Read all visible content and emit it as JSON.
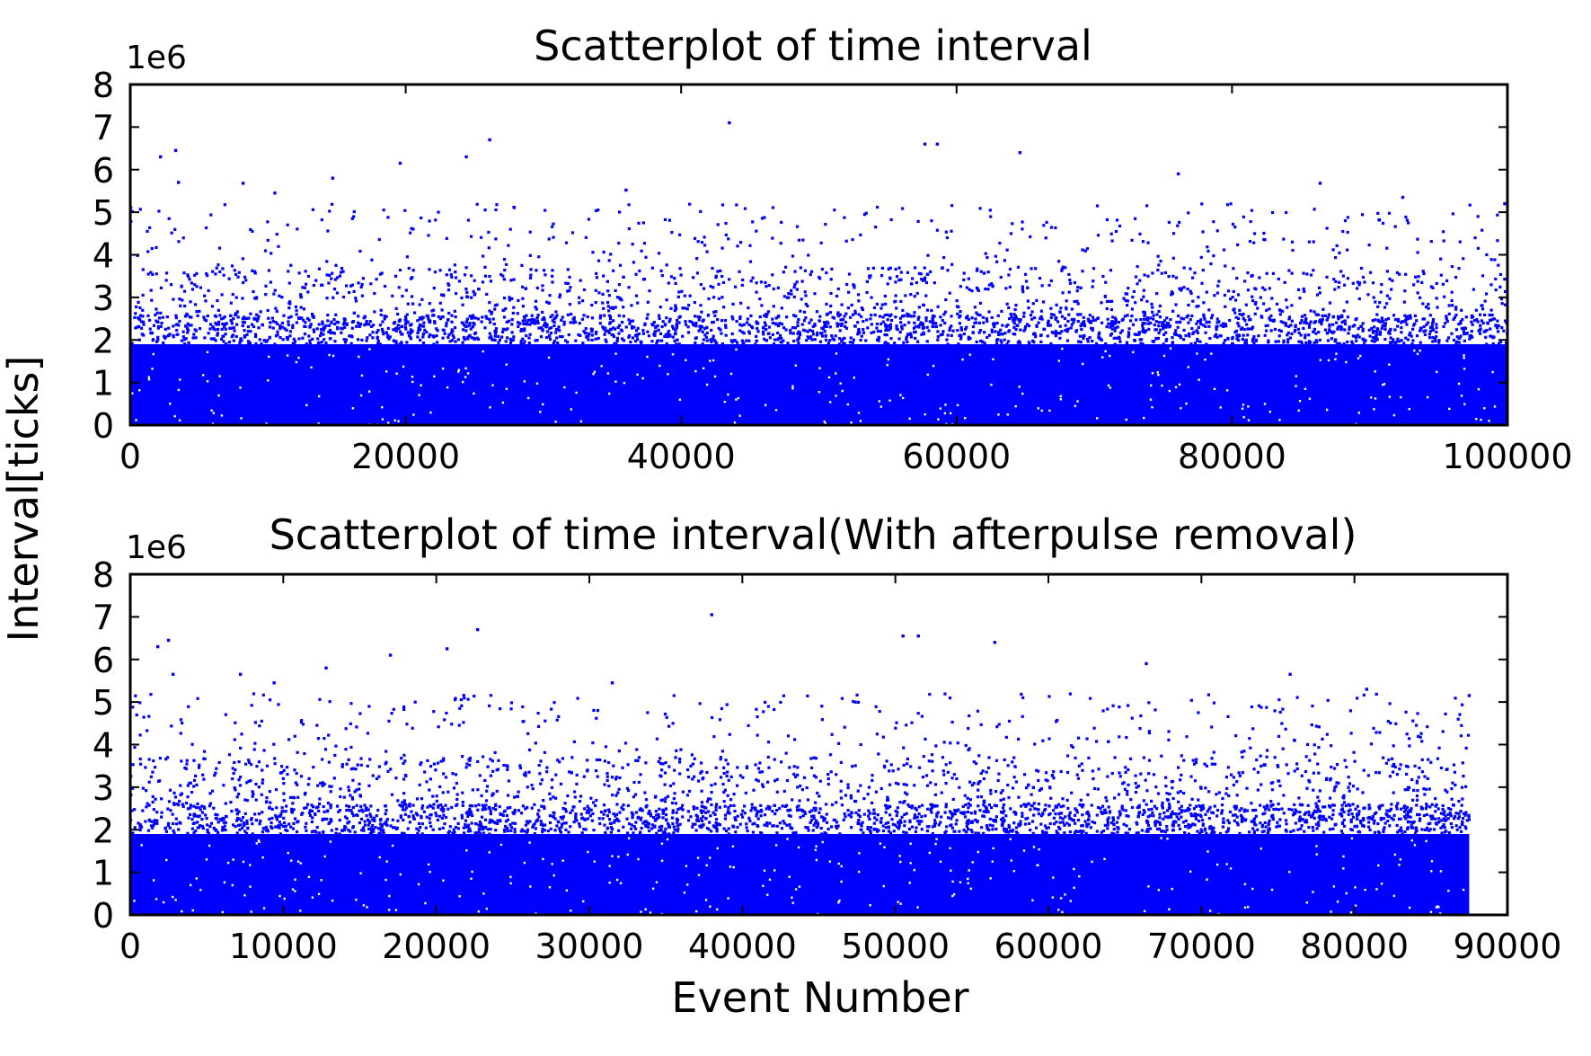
{
  "figure": {
    "ylabel": "Interval[ticks]",
    "xlabel": "Event Number"
  },
  "chart_data": [
    {
      "type": "scatter",
      "title": "Scatterplot of time interval",
      "xlabel": "",
      "ylabel": "Interval[ticks]",
      "xlim": [
        0,
        100000
      ],
      "ylim": [
        0,
        8000000
      ],
      "y_offset_label": "1e6",
      "x_ticks": [
        "0",
        "20000",
        "40000",
        "60000",
        "80000",
        "100000"
      ],
      "y_ticks": [
        "0",
        "1",
        "2",
        "3",
        "4",
        "5",
        "6",
        "7",
        "8"
      ],
      "marker_color": "#0000ff",
      "grid": false,
      "n_points": 100000,
      "dense_band_max": 1900000,
      "distribution": "dense band 0 to ~1.9e6; sparse scatter up to ~7.1e6",
      "outliers": {
        "x": [
          2200,
          3300,
          3500,
          8200,
          10500,
          14700,
          19600,
          24400,
          26100,
          36000,
          43500,
          57700,
          58600,
          64600,
          76100,
          86400,
          92400,
          99800
        ],
        "y": [
          6300000,
          6450000,
          5700000,
          5680000,
          5450000,
          5800000,
          6150000,
          6300000,
          6700000,
          5520000,
          7100000,
          6600000,
          6600000,
          6400000,
          5900000,
          5680000,
          5350000,
          5200000
        ]
      }
    },
    {
      "type": "scatter",
      "title": "Scatterplot of time interval(With afterpulse removal)",
      "xlabel": "Event Number",
      "ylabel": "Interval[ticks]",
      "xlim": [
        0,
        90000
      ],
      "ylim": [
        0,
        8000000
      ],
      "y_offset_label": "1e6",
      "x_ticks": [
        "0",
        "10000",
        "20000",
        "30000",
        "40000",
        "50000",
        "60000",
        "70000",
        "80000",
        "90000"
      ],
      "y_ticks": [
        "0",
        "1",
        "2",
        "3",
        "4",
        "5",
        "6",
        "7",
        "8"
      ],
      "marker_color": "#0000ff",
      "grid": false,
      "n_points": 87500,
      "dense_band_max": 1900000,
      "distribution": "dense band 0 to ~1.9e6; sparse scatter up to ~7.1e6",
      "outliers": {
        "x": [
          1800,
          2500,
          2800,
          7200,
          9400,
          12800,
          17000,
          20700,
          22700,
          31500,
          38000,
          50500,
          51500,
          56500,
          66400,
          75800,
          80800,
          87500
        ],
        "y": [
          6300000,
          6450000,
          5650000,
          5650000,
          5450000,
          5800000,
          6100000,
          6250000,
          6700000,
          5450000,
          7050000,
          6550000,
          6550000,
          6400000,
          5900000,
          5650000,
          5300000,
          5150000
        ]
      }
    }
  ]
}
